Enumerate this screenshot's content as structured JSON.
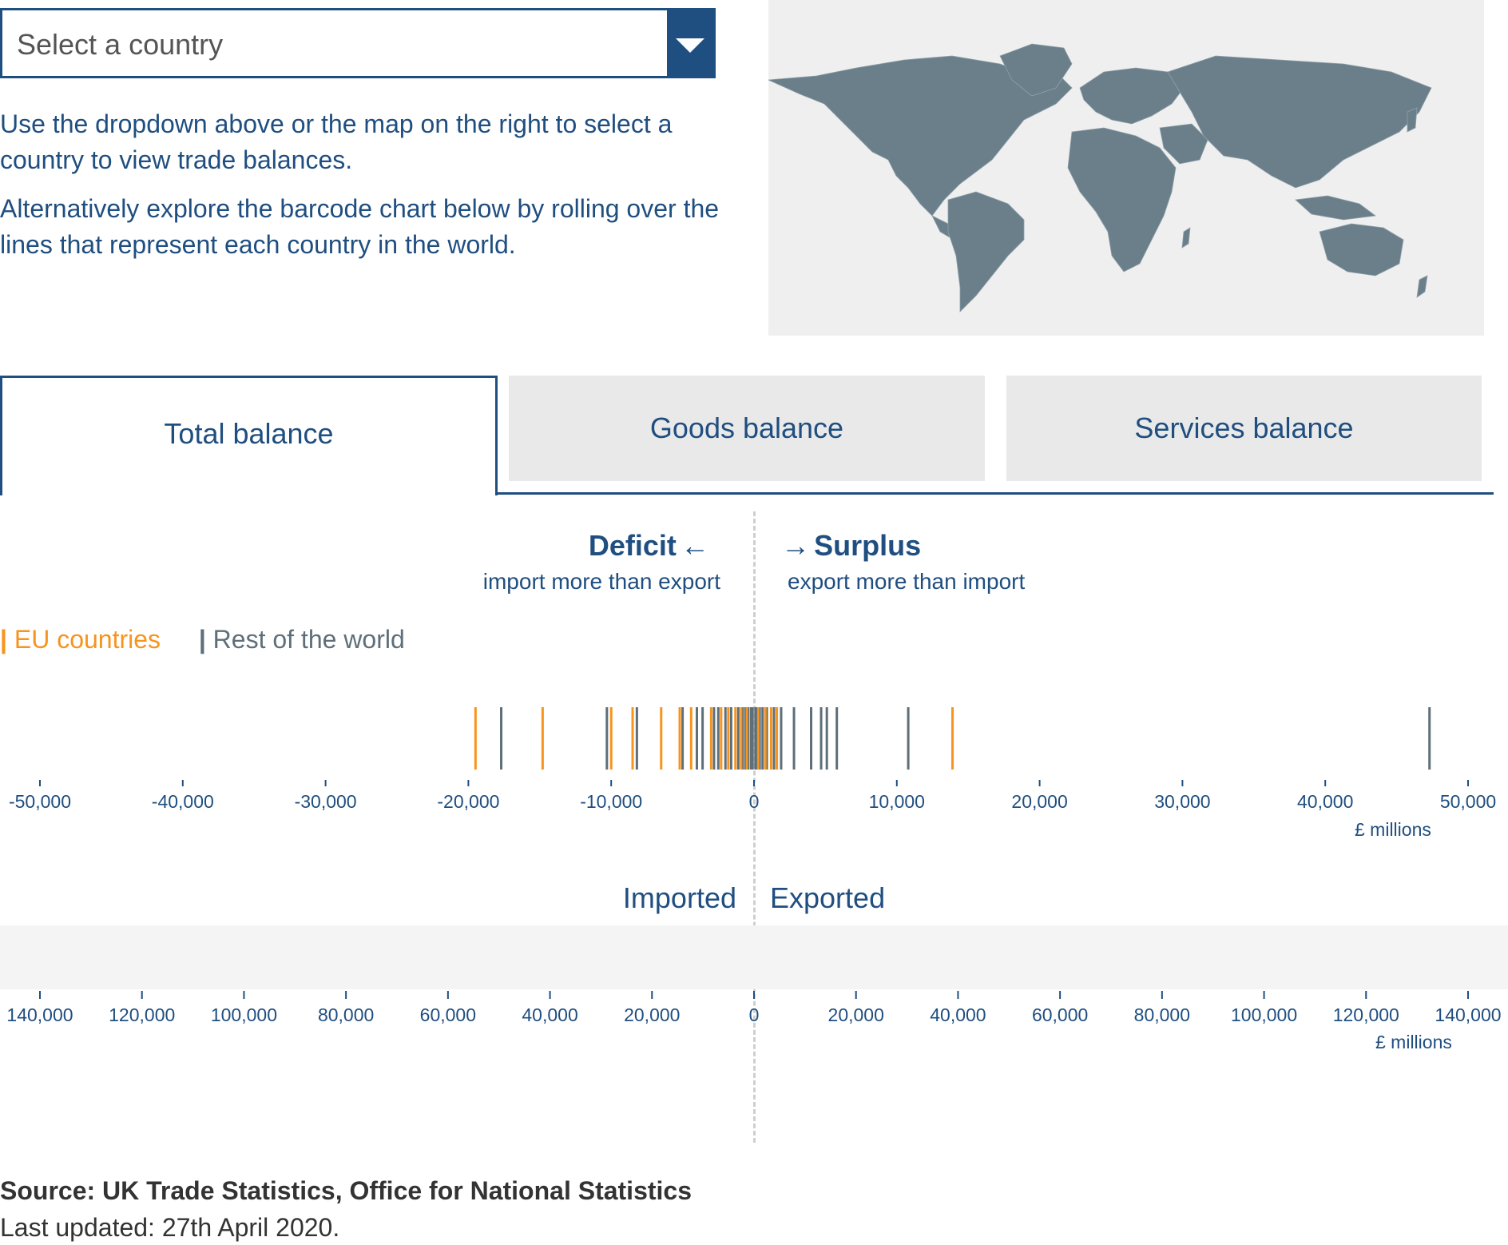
{
  "dropdown": {
    "placeholder": "Select a country"
  },
  "intro": {
    "p1": "Use the dropdown above or the map on the right to select a country to view trade balances.",
    "p2": "Alternatively explore the barcode chart below by rolling over the lines that represent each country in the world."
  },
  "tabs": [
    {
      "label": "Total balance",
      "active": true
    },
    {
      "label": "Goods balance",
      "active": false
    },
    {
      "label": "Services balance",
      "active": false
    }
  ],
  "balance_header": {
    "deficit": "Deficit",
    "deficit_arrow": "←",
    "deficit_sub": "import more than export",
    "surplus": "Surplus",
    "surplus_arrow": "→",
    "surplus_sub": "export more than import"
  },
  "legend": {
    "eu": "EU countries",
    "row": "Rest of the world",
    "marker": "|"
  },
  "colors": {
    "eu": "#f7941d",
    "row": "#5e6f7a",
    "primary": "#1f4e80",
    "map_land": "#6b7f8a",
    "map_bg": "#efefef"
  },
  "chart_data": [
    {
      "type": "barcode",
      "unit_label": "£ millions",
      "xlim": [
        -50000,
        50000
      ],
      "ticks": [
        "-50,000",
        "-40,000",
        "-30,000",
        "-20,000",
        "-10,000",
        "0",
        "10,000",
        "20,000",
        "30,000",
        "40,000",
        "50,000"
      ],
      "tick_values": [
        -50000,
        -40000,
        -30000,
        -20000,
        -10000,
        0,
        10000,
        20000,
        30000,
        40000,
        50000
      ],
      "series": [
        {
          "name": "EU countries",
          "values": [
            -19500,
            -14800,
            -10000,
            -8500,
            -6500,
            -5200,
            -4400,
            -3000,
            -2300,
            -1800,
            -1300,
            -900,
            -500,
            300,
            800,
            1200,
            1600,
            13900
          ]
        },
        {
          "name": "Rest of the world",
          "values": [
            -17700,
            -10300,
            -8200,
            -5000,
            -4000,
            -3600,
            -2800,
            -2500,
            -2000,
            -1600,
            -1100,
            -800,
            -600,
            -400,
            -200,
            -100,
            100,
            200,
            400,
            600,
            900,
            1400,
            1900,
            2800,
            4000,
            4700,
            5100,
            5800,
            10800,
            47300
          ]
        }
      ]
    },
    {
      "type": "barcode",
      "unit_label": "£ millions",
      "left_label": "Imported",
      "right_label": "Exported",
      "xlim": [
        -140000,
        140000
      ],
      "ticks": [
        "140,000",
        "120,000",
        "100,000",
        "80,000",
        "60,000",
        "40,000",
        "20,000",
        "0",
        "20,000",
        "40,000",
        "60,000",
        "80,000",
        "100,000",
        "120,000",
        "140,000"
      ],
      "tick_values": [
        -140000,
        -120000,
        -100000,
        -80000,
        -60000,
        -40000,
        -20000,
        0,
        20000,
        40000,
        60000,
        80000,
        100000,
        120000,
        140000
      ],
      "series": []
    }
  ],
  "footer": {
    "source": "Source: UK Trade Statistics, Office for National Statistics",
    "updated": "Last updated: 27th April 2020."
  }
}
